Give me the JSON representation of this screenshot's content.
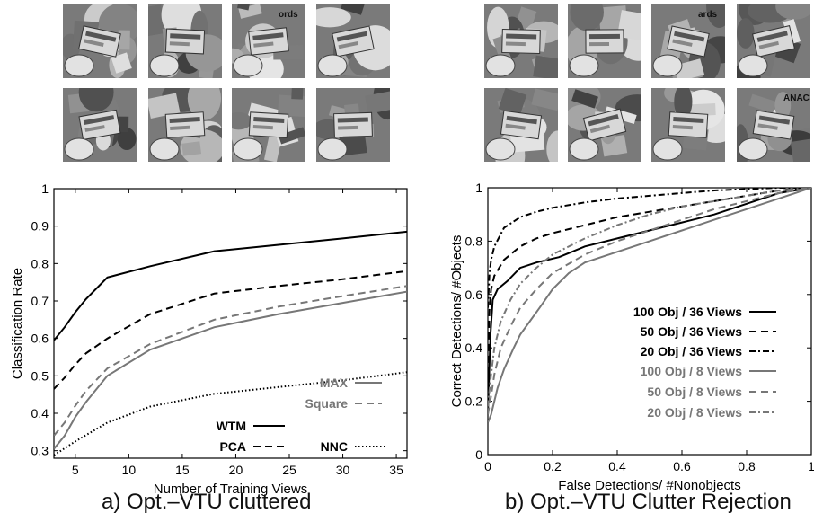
{
  "captions": {
    "left": "a) Opt.–VTU cluttered",
    "right": "b) Opt.–VTU Clutter Rejection"
  },
  "thumbnails": {
    "left": [
      {
        "label": ""
      },
      {
        "label": ""
      },
      {
        "label": "ords"
      },
      {
        "label": ""
      },
      {
        "label": ""
      },
      {
        "label": ""
      },
      {
        "label": ""
      },
      {
        "label": ""
      }
    ],
    "right": [
      {
        "label": ""
      },
      {
        "label": ""
      },
      {
        "label": "ards"
      },
      {
        "label": ""
      },
      {
        "label": ""
      },
      {
        "label": ""
      },
      {
        "label": ""
      },
      {
        "label": "ANACIN"
      }
    ]
  },
  "chart_data": [
    {
      "type": "line",
      "xlabel": "Number of Training Views",
      "ylabel": "Classification Rate",
      "xlim": [
        3,
        36
      ],
      "ylim": [
        0.28,
        1.0
      ],
      "xticks": [
        5,
        10,
        15,
        20,
        25,
        30,
        35
      ],
      "yticks": [
        0.3,
        0.4,
        0.5,
        0.6,
        0.7,
        0.8,
        0.9,
        1
      ],
      "ytick_labels": [
        "0.3",
        "0.4",
        "0.5",
        "0.6",
        "0.7",
        "0.8",
        "0.9",
        "1"
      ],
      "grid": false,
      "legend_position": "bottom-right",
      "series": [
        {
          "name": "WTM",
          "color": "#000000",
          "dash": "solid",
          "x": [
            3,
            4,
            5,
            6,
            8,
            12,
            18,
            24,
            30,
            36
          ],
          "y": [
            0.595,
            0.63,
            0.67,
            0.705,
            0.763,
            0.793,
            0.833,
            0.85,
            0.867,
            0.885
          ]
        },
        {
          "name": "PCA",
          "color": "#000000",
          "dash": "dashed",
          "x": [
            3,
            4,
            5,
            6,
            8,
            12,
            18,
            24,
            30,
            36
          ],
          "y": [
            0.465,
            0.495,
            0.53,
            0.56,
            0.6,
            0.665,
            0.72,
            0.74,
            0.758,
            0.78
          ]
        },
        {
          "name": "NNC",
          "color": "#000000",
          "dash": "dotted",
          "x": [
            3,
            5,
            8,
            12,
            18,
            24,
            30,
            36
          ],
          "y": [
            0.288,
            0.325,
            0.375,
            0.418,
            0.452,
            0.47,
            0.488,
            0.51
          ]
        },
        {
          "name": "MAX",
          "color": "#777777",
          "dash": "solid",
          "x": [
            3,
            4,
            5,
            6,
            8,
            12,
            18,
            24,
            30,
            36
          ],
          "y": [
            0.305,
            0.34,
            0.39,
            0.43,
            0.5,
            0.57,
            0.63,
            0.665,
            0.695,
            0.725
          ]
        },
        {
          "name": "Square",
          "color": "#777777",
          "dash": "dashed",
          "x": [
            3,
            4,
            5,
            6,
            8,
            12,
            18,
            24,
            30,
            36
          ],
          "y": [
            0.34,
            0.375,
            0.42,
            0.46,
            0.52,
            0.585,
            0.65,
            0.685,
            0.713,
            0.74
          ]
        }
      ]
    },
    {
      "type": "line",
      "xlabel": "False Detections/ #Nonobjects",
      "ylabel": "Correct Detections/ #Objects",
      "xlim": [
        0,
        1
      ],
      "ylim": [
        0,
        1
      ],
      "xticks": [
        0,
        0.2,
        0.4,
        0.6,
        0.8,
        1
      ],
      "xtick_labels": [
        "0",
        "0.2",
        "0.4",
        "0.6",
        "0.8",
        "1"
      ],
      "yticks": [
        0,
        0.2,
        0.4,
        0.6,
        0.8,
        1
      ],
      "ytick_labels": [
        "0",
        "0.2",
        "0.4",
        "0.6",
        "0.8",
        "1"
      ],
      "grid": false,
      "legend_position": "bottom-right",
      "series": [
        {
          "name": "100 Obj / 36 Views",
          "color": "#000000",
          "dash": "solid",
          "x": [
            0,
            0.004,
            0.008,
            0.015,
            0.03,
            0.06,
            0.1,
            0.15,
            0.22,
            0.3,
            0.4,
            0.5,
            0.6,
            0.7,
            0.8,
            0.9,
            1.0
          ],
          "y": [
            0.15,
            0.3,
            0.45,
            0.58,
            0.62,
            0.65,
            0.7,
            0.72,
            0.74,
            0.78,
            0.81,
            0.84,
            0.87,
            0.9,
            0.94,
            0.98,
            1.0
          ]
        },
        {
          "name": "50 Obj / 36 Views",
          "color": "#000000",
          "dash": "dashed",
          "x": [
            0,
            0.005,
            0.01,
            0.02,
            0.05,
            0.1,
            0.15,
            0.2,
            0.3,
            0.4,
            0.5,
            0.6,
            0.7,
            0.8,
            0.9,
            1.0
          ],
          "y": [
            0.3,
            0.55,
            0.62,
            0.67,
            0.73,
            0.78,
            0.81,
            0.83,
            0.86,
            0.89,
            0.91,
            0.93,
            0.95,
            0.97,
            0.99,
            1.0
          ]
        },
        {
          "name": "20 Obj / 36 Views",
          "color": "#000000",
          "dash": "dashdot",
          "x": [
            0,
            0.005,
            0.01,
            0.02,
            0.05,
            0.1,
            0.15,
            0.2,
            0.3,
            0.4,
            0.5,
            0.6,
            0.7,
            0.8,
            0.9,
            1.0
          ],
          "y": [
            0.55,
            0.68,
            0.73,
            0.78,
            0.85,
            0.89,
            0.91,
            0.925,
            0.945,
            0.96,
            0.97,
            0.98,
            0.99,
            0.995,
            1.0,
            1.0
          ]
        },
        {
          "name": "100 Obj / 8 Views",
          "color": "#777777",
          "dash": "solid",
          "x": [
            0,
            0.01,
            0.02,
            0.03,
            0.05,
            0.08,
            0.1,
            0.13,
            0.16,
            0.2,
            0.25,
            0.3,
            0.4,
            0.5,
            0.6,
            0.7,
            0.8,
            0.9,
            1.0
          ],
          "y": [
            0.12,
            0.15,
            0.2,
            0.25,
            0.32,
            0.4,
            0.45,
            0.5,
            0.55,
            0.62,
            0.68,
            0.72,
            0.76,
            0.8,
            0.84,
            0.88,
            0.92,
            0.96,
            1.0
          ]
        },
        {
          "name": "50 Obj / 8 Views",
          "color": "#777777",
          "dash": "dashed",
          "x": [
            0,
            0.01,
            0.02,
            0.04,
            0.07,
            0.1,
            0.15,
            0.2,
            0.3,
            0.4,
            0.5,
            0.6,
            0.7,
            0.8,
            0.9,
            1.0
          ],
          "y": [
            0.15,
            0.22,
            0.3,
            0.4,
            0.48,
            0.55,
            0.62,
            0.68,
            0.75,
            0.8,
            0.84,
            0.88,
            0.92,
            0.95,
            0.98,
            1.0
          ]
        },
        {
          "name": "20 Obj / 8 Views",
          "color": "#777777",
          "dash": "dashdot",
          "x": [
            0,
            0.01,
            0.02,
            0.04,
            0.07,
            0.1,
            0.15,
            0.2,
            0.3,
            0.4,
            0.5,
            0.6,
            0.7,
            0.8,
            0.9,
            1.0
          ],
          "y": [
            0.18,
            0.3,
            0.4,
            0.5,
            0.58,
            0.64,
            0.7,
            0.75,
            0.81,
            0.86,
            0.9,
            0.93,
            0.95,
            0.97,
            0.99,
            1.0
          ]
        }
      ]
    }
  ]
}
